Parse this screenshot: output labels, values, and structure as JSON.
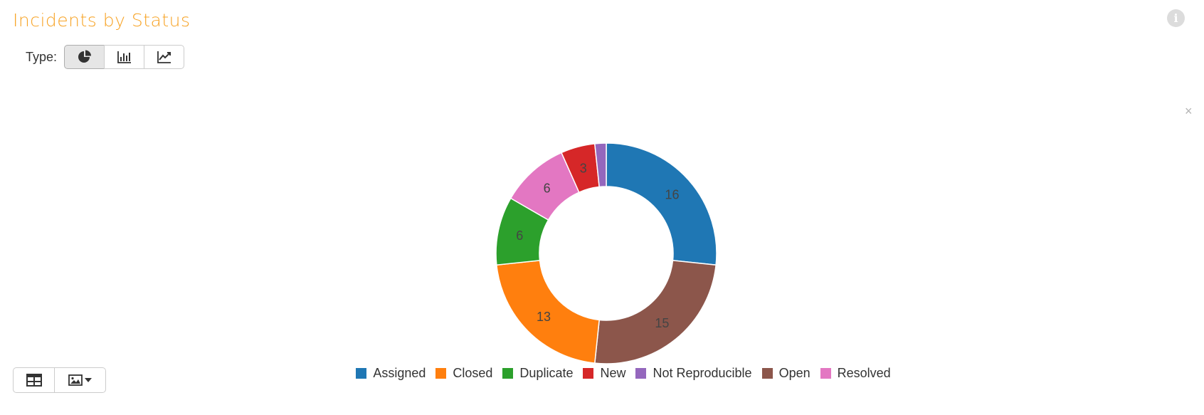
{
  "title": "Incidents by Status",
  "type_label": "Type:",
  "type_buttons": [
    {
      "icon": "pie-chart-icon",
      "active": true
    },
    {
      "icon": "bar-chart-icon",
      "active": false
    },
    {
      "icon": "line-chart-icon",
      "active": false
    }
  ],
  "close_symbol": "×",
  "bottom_buttons": [
    {
      "icon": "table-icon"
    },
    {
      "icon": "image-export-icon"
    }
  ],
  "colors": {
    "title": "#f7a325",
    "info_icon": "#dcdcdc"
  },
  "chart_data": {
    "type": "pie",
    "subtype": "donut",
    "title": "",
    "legend_position": "bottom",
    "categories": [
      "Assigned",
      "Closed",
      "Duplicate",
      "New",
      "Not Reproducible",
      "Open",
      "Resolved"
    ],
    "values": [
      16,
      13,
      6,
      3,
      1,
      15,
      6
    ],
    "colors": [
      "#1f77b4",
      "#ff7f0e",
      "#2ca02c",
      "#d62728",
      "#9467bd",
      "#8c564b",
      "#e377c2"
    ],
    "slice_order": [
      "Assigned",
      "Open",
      "Closed",
      "Duplicate",
      "Resolved",
      "New",
      "Not Reproducible"
    ],
    "data_labels": [
      "16",
      "15",
      "13",
      "6",
      "6",
      "3",
      ""
    ]
  }
}
